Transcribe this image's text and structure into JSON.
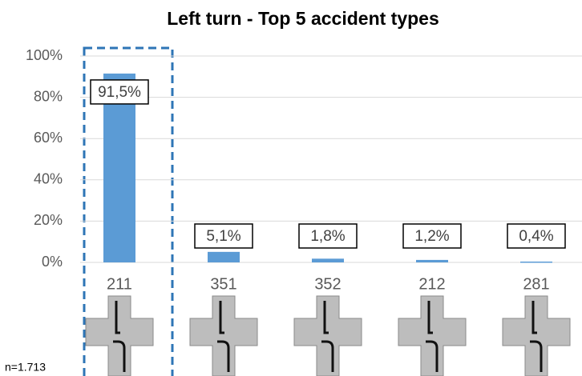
{
  "chart_data": {
    "type": "bar",
    "title": "Left turn - Top 5 accident types",
    "categories": [
      "211",
      "351",
      "352",
      "212",
      "281"
    ],
    "values": [
      91.5,
      5.1,
      1.8,
      1.2,
      0.4
    ],
    "value_labels": [
      "91,5%",
      "5,1%",
      "1,8%",
      "1,2%",
      "0,4%"
    ],
    "color": "#5b9bd5",
    "ylim": [
      0,
      100
    ],
    "yticks": [
      {
        "value": 0,
        "label": "0%"
      },
      {
        "value": 20,
        "label": "20%"
      },
      {
        "value": 40,
        "label": "40%"
      },
      {
        "value": 60,
        "label": "60%"
      },
      {
        "value": 80,
        "label": "80%"
      },
      {
        "value": 100,
        "label": "100%"
      }
    ],
    "grid": true,
    "annotation": "n=1.713"
  }
}
